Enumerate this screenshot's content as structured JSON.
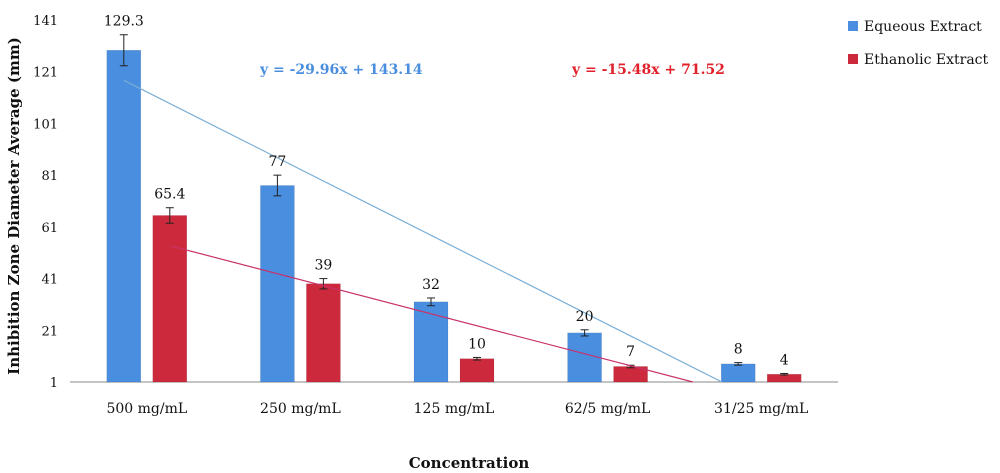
{
  "chart_data": {
    "type": "bar",
    "xlabel": "Concentration",
    "ylabel": "Inhibition Zone Diameter Average (mm)",
    "ylim": [
      1,
      141
    ],
    "yticks": [
      1,
      21,
      41,
      61,
      81,
      101,
      121,
      141
    ],
    "categories": [
      "500 mg/mL",
      "250 mg/mL",
      "125 mg/mL",
      "62/5 mg/mL",
      "31/25 mg/mL"
    ],
    "series": [
      {
        "name": "Equeous Extract",
        "color": "#4a8ee0",
        "values": [
          129.3,
          77,
          32,
          20,
          8
        ],
        "errors": [
          6,
          4,
          1.5,
          1.2,
          0.5
        ],
        "labels": [
          "129.3",
          "77",
          "32",
          "20",
          "8"
        ]
      },
      {
        "name": "Ethanolic Extract",
        "color": "#cc2a3c",
        "values": [
          65.4,
          39,
          10,
          7,
          4
        ],
        "errors": [
          3,
          2,
          0.5,
          0.5,
          0.3
        ],
        "labels": [
          "65.4",
          "39",
          "10",
          "7",
          "4"
        ]
      }
    ],
    "trendlines": [
      {
        "series": "Equeous Extract",
        "equation": "y = -29.96x + 143.14",
        "color": "#4a8ee0",
        "slope": -29.96,
        "intercept": 143.14
      },
      {
        "series": "Ethanolic Extract",
        "equation": "y = -15.48x + 71.52",
        "color": "#e0202a",
        "slope": -15.48,
        "intercept": 71.52
      }
    ],
    "legend": "top-right",
    "grid": false
  }
}
